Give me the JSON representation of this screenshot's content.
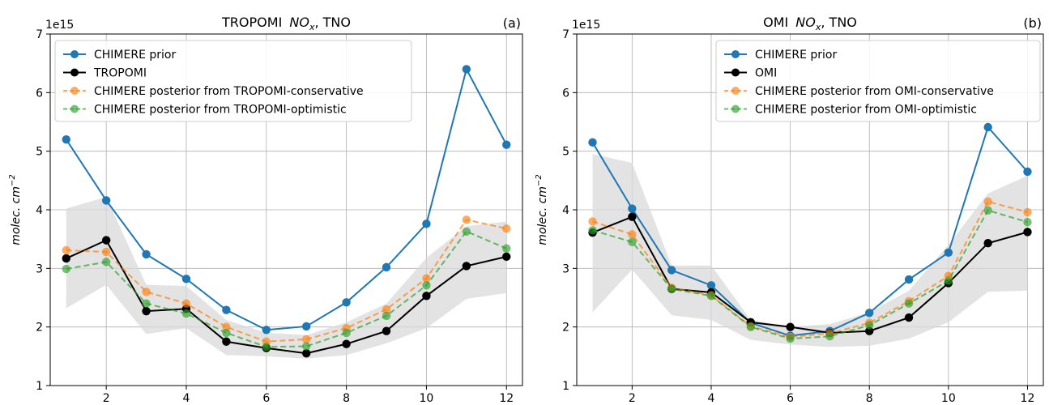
{
  "chart_data": [
    {
      "type": "line",
      "panel_label": "(a)",
      "title_main": "TROPOMI ",
      "title_italic": "NO",
      "title_sub": "x",
      "title_tail": ", TNO",
      "ylabel_text": "molec. cm",
      "ylabel_sup": "−2",
      "y_offset_text": "1e15",
      "ylim": [
        1,
        7
      ],
      "xlim": [
        0.6,
        12.4
      ],
      "xticks": [
        2,
        4,
        6,
        8,
        10,
        12
      ],
      "yticks": [
        1,
        2,
        3,
        4,
        5,
        6,
        7
      ],
      "grid": true,
      "legend_position": "upper-left",
      "x": [
        1,
        2,
        3,
        4,
        5,
        6,
        7,
        8,
        9,
        10,
        11,
        12
      ],
      "uncertainty_band": {
        "lower": [
          2.32,
          2.72,
          1.88,
          1.98,
          1.52,
          1.5,
          1.46,
          1.52,
          1.72,
          1.98,
          2.48,
          2.58
        ],
        "upper": [
          4.02,
          4.22,
          2.72,
          2.7,
          2.12,
          1.9,
          1.86,
          2.08,
          2.4,
          3.18,
          3.72,
          3.8
        ]
      },
      "series": [
        {
          "name": "CHIMERE prior",
          "color": "#1f77b4",
          "style": "solid",
          "values": [
            5.2,
            4.16,
            3.24,
            2.82,
            2.29,
            1.95,
            2.01,
            2.42,
            3.02,
            3.76,
            6.4,
            5.11
          ]
        },
        {
          "name": "TROPOMI",
          "color": "#000000",
          "style": "solid",
          "values": [
            3.17,
            3.48,
            2.27,
            2.31,
            1.75,
            1.64,
            1.55,
            1.71,
            1.93,
            2.53,
            3.04,
            3.2
          ]
        },
        {
          "name": "CHIMERE posterior from TROPOMI-conservative",
          "color": "#ff7f0e",
          "style": "dashed",
          "values": [
            3.31,
            3.28,
            2.6,
            2.4,
            2.0,
            1.75,
            1.79,
            1.98,
            2.3,
            2.83,
            3.83,
            3.68
          ]
        },
        {
          "name": "CHIMERE posterior from TROPOMI-optimistic",
          "color": "#2ca02c",
          "style": "dashed",
          "values": [
            2.99,
            3.11,
            2.4,
            2.23,
            1.9,
            1.66,
            1.67,
            1.9,
            2.19,
            2.71,
            3.63,
            3.34
          ]
        }
      ]
    },
    {
      "type": "line",
      "panel_label": "(b)",
      "title_main": "OMI ",
      "title_italic": "NO",
      "title_sub": "x",
      "title_tail": ", TNO",
      "ylabel_text": "molec. cm",
      "ylabel_sup": "−2",
      "y_offset_text": "1e15",
      "ylim": [
        1,
        7
      ],
      "xlim": [
        0.6,
        12.4
      ],
      "xticks": [
        2,
        4,
        6,
        8,
        10,
        12
      ],
      "yticks": [
        1,
        2,
        3,
        4,
        5,
        6,
        7
      ],
      "grid": true,
      "legend_position": "upper-right",
      "x": [
        1,
        2,
        3,
        4,
        5,
        6,
        7,
        8,
        9,
        10,
        11,
        12
      ],
      "uncertainty_band": {
        "lower": [
          2.25,
          2.98,
          2.2,
          2.12,
          1.78,
          1.7,
          1.66,
          1.68,
          1.8,
          2.08,
          2.6,
          2.62
        ],
        "upper": [
          4.95,
          4.8,
          3.05,
          3.05,
          2.12,
          2.0,
          2.05,
          2.25,
          2.62,
          3.4,
          4.28,
          4.58
        ]
      },
      "series": [
        {
          "name": "CHIMERE prior",
          "color": "#1f77b4",
          "style": "solid",
          "values": [
            5.15,
            4.02,
            2.97,
            2.71,
            2.07,
            1.85,
            1.93,
            2.24,
            2.81,
            3.27,
            5.41,
            4.65
          ]
        },
        {
          "name": "OMI",
          "color": "#000000",
          "style": "solid",
          "values": [
            3.61,
            3.88,
            2.65,
            2.59,
            2.08,
            2.0,
            1.9,
            1.93,
            2.16,
            2.75,
            3.43,
            3.62
          ]
        },
        {
          "name": "CHIMERE posterior from OMI-conservative",
          "color": "#ff7f0e",
          "style": "dashed",
          "values": [
            3.8,
            3.58,
            2.67,
            2.54,
            2.01,
            1.83,
            1.89,
            2.07,
            2.44,
            2.87,
            4.14,
            3.96
          ]
        },
        {
          "name": "CHIMERE posterior from OMI-optimistic",
          "color": "#2ca02c",
          "style": "dashed",
          "values": [
            3.65,
            3.45,
            2.65,
            2.53,
            2.0,
            1.8,
            1.84,
            2.03,
            2.4,
            2.79,
            3.99,
            3.79
          ]
        }
      ]
    }
  ]
}
